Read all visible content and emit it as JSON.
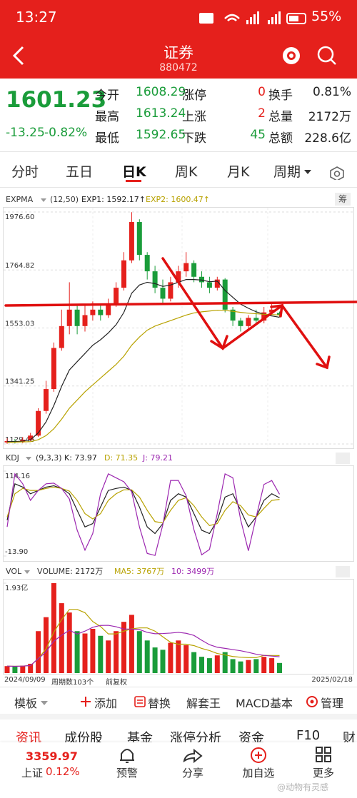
{
  "status_bar": {
    "time": "13:27",
    "battery": "55%"
  },
  "header": {
    "title": "证券",
    "code": "880472"
  },
  "quote": {
    "price": "1601.23",
    "change": "-13.25",
    "change_pct": "-0.82%",
    "stats": [
      [
        "今开",
        "1608.29",
        "涨停",
        "0",
        "换手",
        "0.81%"
      ],
      [
        "最高",
        "1613.24",
        "上涨",
        "2",
        "总量",
        "2172万"
      ],
      [
        "最低",
        "1592.65",
        "下跌",
        "45",
        "总额",
        "228.6亿"
      ]
    ]
  },
  "tabs": [
    "分时",
    "五日",
    "日K",
    "周K",
    "月K",
    "周期"
  ],
  "chip_button": "筹",
  "chart_data": [
    {
      "type": "candlestick",
      "indicator": "EXPMA",
      "params": "(12,50)",
      "up_color": "#e5201c",
      "down_color": "#1a9c3a",
      "ylim": [
        1129.46,
        1976.6
      ],
      "yticks": [
        {
          "value": 1976.6,
          "label": "1976.60"
        },
        1764.82,
        1553.03,
        1341.25,
        1129.46
      ],
      "grid": true,
      "candles": [
        [
          1135,
          1140,
          1150,
          1130
        ],
        [
          1140,
          1138,
          1148,
          1131
        ],
        [
          1138,
          1145,
          1155,
          1132
        ],
        [
          1145,
          1160,
          1170,
          1140
        ],
        [
          1160,
          1250,
          1260,
          1155
        ],
        [
          1250,
          1330,
          1360,
          1240
        ],
        [
          1330,
          1480,
          1500,
          1320
        ],
        [
          1480,
          1560,
          1620,
          1470
        ],
        [
          1560,
          1620,
          1720,
          1530
        ],
        [
          1620,
          1560,
          1640,
          1530
        ],
        [
          1560,
          1600,
          1640,
          1540
        ],
        [
          1600,
          1620,
          1650,
          1580
        ],
        [
          1620,
          1600,
          1640,
          1580
        ],
        [
          1600,
          1640,
          1660,
          1590
        ],
        [
          1640,
          1700,
          1720,
          1630
        ],
        [
          1700,
          1800,
          1830,
          1690
        ],
        [
          1800,
          1940,
          1976,
          1790
        ],
        [
          1940,
          1820,
          1950,
          1800
        ],
        [
          1820,
          1760,
          1830,
          1730
        ],
        [
          1760,
          1700,
          1780,
          1680
        ],
        [
          1700,
          1660,
          1730,
          1640
        ],
        [
          1660,
          1720,
          1740,
          1650
        ],
        [
          1720,
          1760,
          1780,
          1700
        ],
        [
          1760,
          1790,
          1830,
          1740
        ],
        [
          1790,
          1740,
          1800,
          1720
        ],
        [
          1740,
          1720,
          1760,
          1700
        ],
        [
          1720,
          1700,
          1740,
          1680
        ],
        [
          1700,
          1730,
          1740,
          1690
        ],
        [
          1730,
          1620,
          1735,
          1610
        ],
        [
          1620,
          1580,
          1630,
          1560
        ],
        [
          1580,
          1560,
          1590,
          1540
        ],
        [
          1560,
          1590,
          1600,
          1550
        ],
        [
          1590,
          1580,
          1620,
          1570
        ],
        [
          1580,
          1610,
          1630,
          1570
        ],
        [
          1610,
          1620,
          1640,
          1600
        ],
        [
          1608,
          1601,
          1613,
          1593
        ]
      ],
      "series": [
        {
          "label": "EXP1: 1592.17↑",
          "color": "#222222",
          "values": [
            1138,
            1138,
            1140,
            1145,
            1170,
            1210,
            1270,
            1340,
            1400,
            1430,
            1460,
            1490,
            1510,
            1535,
            1565,
            1610,
            1680,
            1710,
            1720,
            1715,
            1705,
            1710,
            1720,
            1730,
            1730,
            1728,
            1722,
            1724,
            1690,
            1665,
            1640,
            1625,
            1612,
            1603,
            1597,
            1592.17
          ]
        },
        {
          "label": "EXP2: 1600.47↑",
          "color": "#b8a200",
          "values": [
            1135,
            1136,
            1137,
            1138,
            1145,
            1160,
            1185,
            1220,
            1260,
            1290,
            1320,
            1345,
            1370,
            1395,
            1420,
            1450,
            1490,
            1520,
            1545,
            1560,
            1570,
            1580,
            1590,
            1600,
            1608,
            1612,
            1615,
            1618,
            1617,
            1614,
            1610,
            1607,
            1605,
            1603,
            1602,
            1600.47
          ]
        }
      ]
    },
    {
      "type": "line",
      "indicator": "KDJ",
      "params": "(9,3,3)",
      "ylim": [
        -13.9,
        114.16
      ],
      "yticks": [
        114.16,
        {
          "value": -13.9,
          "label": "-13.90"
        }
      ],
      "series": [
        {
          "label": "K: 73.97",
          "color": "#222222",
          "values": [
            40,
            95,
            90,
            80,
            85,
            90,
            92,
            88,
            80,
            55,
            30,
            35,
            60,
            85,
            88,
            90,
            85,
            60,
            30,
            20,
            35,
            70,
            80,
            75,
            50,
            25,
            20,
            40,
            75,
            80,
            55,
            30,
            45,
            70,
            80,
            73.97
          ]
        },
        {
          "label": "D: 71.35",
          "color": "#b8a200",
          "values": [
            45,
            80,
            88,
            85,
            85,
            88,
            90,
            88,
            84,
            70,
            50,
            42,
            50,
            70,
            80,
            86,
            86,
            75,
            55,
            38,
            36,
            55,
            70,
            74,
            62,
            45,
            32,
            35,
            55,
            68,
            62,
            48,
            45,
            58,
            70,
            71.35
          ]
        },
        {
          "label": "J: 79.21",
          "color": "#9c27b0",
          "values": [
            30,
            110,
            95,
            70,
            85,
            95,
            96,
            88,
            72,
            25,
            -5,
            20,
            80,
            110,
            104,
            98,
            83,
            30,
            -10,
            -13,
            33,
            100,
            100,
            77,
            26,
            -12,
            -4,
            50,
            110,
            104,
            41,
            -6,
            45,
            94,
            100,
            79.21
          ]
        }
      ]
    },
    {
      "type": "bar",
      "indicator": "VOL",
      "ylim": [
        0,
        19300
      ],
      "yticks": [
        {
          "value": 19300,
          "label": "1.93亿"
        }
      ],
      "label": "VOLUME: 2172万",
      "values": [
        1500,
        1400,
        1600,
        2000,
        9000,
        12000,
        19300,
        15000,
        13000,
        9000,
        8500,
        9500,
        8000,
        7000,
        9000,
        11000,
        12500,
        9000,
        7000,
        5500,
        5000,
        6500,
        7000,
        6000,
        4500,
        3500,
        3200,
        3800,
        4500,
        3000,
        2500,
        2800,
        3000,
        3500,
        3200,
        2172
      ],
      "series": [
        {
          "label": "MA5: 3767万",
          "color": "#b8a200",
          "values": [
            1500,
            1450,
            1500,
            1625,
            3100,
            5200,
            8780,
            11460,
            13660,
            13660,
            12960,
            11060,
            10000,
            8400,
            8400,
            9000,
            9500,
            9700,
            9700,
            9000,
            7800,
            6600,
            6200,
            6200,
            5900,
            5300,
            4840,
            4200,
            3900,
            3560,
            3400,
            3320,
            3320,
            3800,
            3780,
            3767
          ]
        },
        {
          "label": "10: 3499万",
          "color": "#9c27b0",
          "values": [
            1500,
            1450,
            1500,
            1625,
            3100,
            4580,
            6830,
            8140,
            9200,
            8380,
            9000,
            9830,
            10230,
            10250,
            9950,
            9450,
            9450,
            9340,
            8740,
            8440,
            8490,
            8590,
            8740,
            8540,
            8090,
            7040,
            6090,
            5550,
            5300,
            5050,
            4800,
            4450,
            4050,
            3800,
            3650,
            3499
          ]
        }
      ]
    }
  ],
  "date_bar": {
    "start": "2024/09/09",
    "periods": "周期数103个",
    "adjust": "前复权",
    "end": "2025/02/18"
  },
  "toolbar": [
    "模板",
    "添加",
    "替换",
    "解套王",
    "MACD基本",
    "管理"
  ],
  "sub_tabs": [
    "资讯",
    "成份股",
    "基金",
    "涨停分析",
    "资金",
    "F10",
    "财"
  ],
  "index": {
    "value": "3359.97",
    "name": "上证",
    "pct": "0.12%"
  },
  "nav": [
    "预警",
    "分享",
    "加自选",
    "更多"
  ],
  "watermark": "@动物有灵感"
}
